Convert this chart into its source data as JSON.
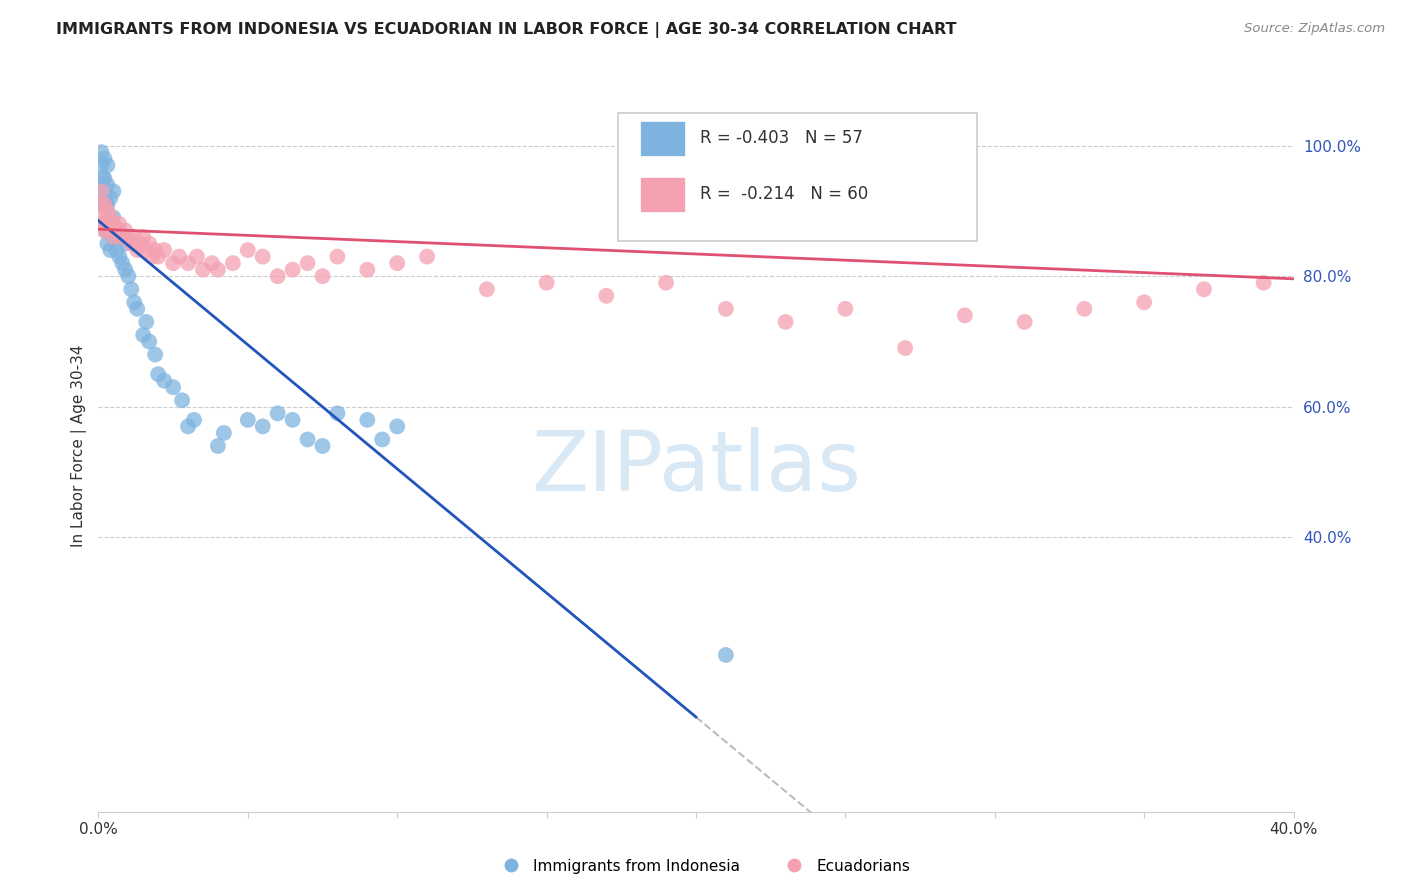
{
  "title": "IMMIGRANTS FROM INDONESIA VS ECUADORIAN IN LABOR FORCE | AGE 30-34 CORRELATION CHART",
  "source_text": "Source: ZipAtlas.com",
  "ylabel": "In Labor Force | Age 30-34",
  "R1": -0.403,
  "N1": 57,
  "R2": -0.214,
  "N2": 60,
  "color1": "#7EB3E0",
  "color2": "#F4A0B0",
  "line_color1": "#2255BB",
  "line_color2": "#E05070",
  "watermark_color": "#D8E8F5",
  "xlim": [
    0.0,
    0.4
  ],
  "ylim": [
    -0.02,
    1.1
  ],
  "legend_label1": "Immigrants from Indonesia",
  "legend_label2": "Ecuadorians",
  "ind_intercept": 0.885,
  "ind_slope": -3.8,
  "ecu_intercept": 0.872,
  "ecu_slope": -0.19,
  "indonesia_x": [
    0.0005,
    0.001,
    0.001,
    0.0015,
    0.0015,
    0.002,
    0.002,
    0.002,
    0.002,
    0.0025,
    0.0025,
    0.003,
    0.003,
    0.003,
    0.003,
    0.003,
    0.004,
    0.004,
    0.004,
    0.005,
    0.005,
    0.005,
    0.006,
    0.006,
    0.007,
    0.007,
    0.008,
    0.008,
    0.009,
    0.009,
    0.01,
    0.011,
    0.012,
    0.013,
    0.015,
    0.016,
    0.017,
    0.019,
    0.02,
    0.022,
    0.025,
    0.028,
    0.03,
    0.032,
    0.04,
    0.042,
    0.05,
    0.055,
    0.06,
    0.065,
    0.07,
    0.075,
    0.08,
    0.09,
    0.095,
    0.1,
    0.21
  ],
  "indonesia_y": [
    0.93,
    0.97,
    0.99,
    0.91,
    0.95,
    0.88,
    0.92,
    0.95,
    0.98,
    0.87,
    0.91,
    0.85,
    0.88,
    0.91,
    0.94,
    0.97,
    0.84,
    0.88,
    0.92,
    0.86,
    0.89,
    0.93,
    0.84,
    0.87,
    0.83,
    0.87,
    0.82,
    0.86,
    0.81,
    0.85,
    0.8,
    0.78,
    0.76,
    0.75,
    0.71,
    0.73,
    0.7,
    0.68,
    0.65,
    0.64,
    0.63,
    0.61,
    0.57,
    0.58,
    0.54,
    0.56,
    0.58,
    0.57,
    0.59,
    0.58,
    0.55,
    0.54,
    0.59,
    0.58,
    0.55,
    0.57,
    0.22
  ],
  "ecuador_x": [
    0.0005,
    0.001,
    0.001,
    0.0015,
    0.002,
    0.002,
    0.003,
    0.003,
    0.004,
    0.004,
    0.005,
    0.005,
    0.006,
    0.007,
    0.008,
    0.009,
    0.01,
    0.011,
    0.012,
    0.013,
    0.014,
    0.015,
    0.016,
    0.017,
    0.018,
    0.019,
    0.02,
    0.022,
    0.025,
    0.027,
    0.03,
    0.033,
    0.035,
    0.038,
    0.04,
    0.045,
    0.05,
    0.055,
    0.06,
    0.065,
    0.07,
    0.075,
    0.08,
    0.09,
    0.1,
    0.11,
    0.13,
    0.15,
    0.17,
    0.19,
    0.21,
    0.23,
    0.25,
    0.27,
    0.29,
    0.31,
    0.33,
    0.35,
    0.37,
    0.39
  ],
  "ecuador_y": [
    0.91,
    0.89,
    0.93,
    0.88,
    0.87,
    0.91,
    0.88,
    0.9,
    0.87,
    0.89,
    0.86,
    0.88,
    0.87,
    0.88,
    0.86,
    0.87,
    0.86,
    0.85,
    0.86,
    0.84,
    0.85,
    0.86,
    0.84,
    0.85,
    0.83,
    0.84,
    0.83,
    0.84,
    0.82,
    0.83,
    0.82,
    0.83,
    0.81,
    0.82,
    0.81,
    0.82,
    0.84,
    0.83,
    0.8,
    0.81,
    0.82,
    0.8,
    0.83,
    0.81,
    0.82,
    0.83,
    0.78,
    0.79,
    0.77,
    0.79,
    0.75,
    0.73,
    0.75,
    0.69,
    0.74,
    0.73,
    0.75,
    0.76,
    0.78,
    0.79
  ],
  "ind_line_solid_end": 0.2,
  "ind_line_dashed_end": 0.4
}
